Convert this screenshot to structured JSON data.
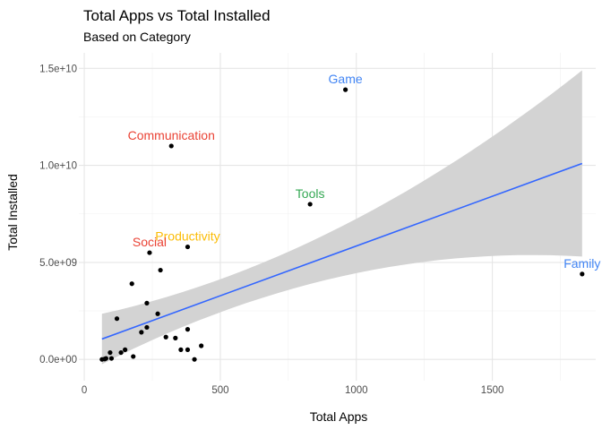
{
  "chart_data": {
    "type": "scatter",
    "title": "Total Apps vs Total Installed",
    "subtitle": "Based on Category",
    "xlabel": "Total Apps",
    "ylabel": "Total Installed",
    "xlim": [
      -20,
      1880
    ],
    "ylim": [
      -1100000000.0,
      15800000000.0
    ],
    "x_ticks": [
      0,
      500,
      1000,
      1500
    ],
    "x_tick_labels": [
      "0",
      "500",
      "1000",
      "1500"
    ],
    "y_ticks": [
      0,
      5000000000.0,
      10000000000.0,
      15000000000.0
    ],
    "y_tick_labels": [
      "0.0e+00",
      "5.0e+09",
      "1.0e+10",
      "1.5e+10"
    ],
    "grid": true,
    "points": [
      {
        "x": 960,
        "y": 13900000000.0
      },
      {
        "x": 320,
        "y": 11000000000.0
      },
      {
        "x": 830,
        "y": 8000000000.0
      },
      {
        "x": 240,
        "y": 5500000000.0
      },
      {
        "x": 380,
        "y": 5800000000.0
      },
      {
        "x": 1830,
        "y": 4400000000.0
      },
      {
        "x": 280,
        "y": 4600000000.0
      },
      {
        "x": 175,
        "y": 3900000000.0
      },
      {
        "x": 230,
        "y": 2900000000.0
      },
      {
        "x": 270,
        "y": 2350000000.0
      },
      {
        "x": 120,
        "y": 2100000000.0
      },
      {
        "x": 230,
        "y": 1650000000.0
      },
      {
        "x": 210,
        "y": 1400000000.0
      },
      {
        "x": 380,
        "y": 1550000000.0
      },
      {
        "x": 300,
        "y": 1150000000.0
      },
      {
        "x": 335,
        "y": 1100000000.0
      },
      {
        "x": 430,
        "y": 700000000.0
      },
      {
        "x": 355,
        "y": 500000000.0
      },
      {
        "x": 380,
        "y": 500000000.0
      },
      {
        "x": 150,
        "y": 500000000.0
      },
      {
        "x": 135,
        "y": 350000000.0
      },
      {
        "x": 95,
        "y": 350000000.0
      },
      {
        "x": 180,
        "y": 150000000.0
      },
      {
        "x": 405,
        "y": 0.0
      },
      {
        "x": 100,
        "y": 50000000.0
      },
      {
        "x": 80,
        "y": 50000000.0
      },
      {
        "x": 65,
        "y": 0.0
      },
      {
        "x": 75,
        "y": 20000000.0
      }
    ],
    "labels": [
      {
        "text": "Game",
        "x": 960,
        "y": 13900000000.0,
        "color": "#4285F4"
      },
      {
        "text": "Communication",
        "x": 320,
        "y": 11000000000.0,
        "color": "#EA4335"
      },
      {
        "text": "Tools",
        "x": 830,
        "y": 8000000000.0,
        "color": "#34A853"
      },
      {
        "text": "Productivity",
        "x": 380,
        "y": 5800000000.0,
        "color": "#FBBC05"
      },
      {
        "text": "Social",
        "x": 240,
        "y": 5500000000.0,
        "color": "#EA4335"
      },
      {
        "text": "Family",
        "x": 1830,
        "y": 4400000000.0,
        "color": "#4285F4"
      }
    ],
    "trend": {
      "method": "lm",
      "color": "#3366FF",
      "band_color": "#D3D3D3",
      "x_start": 65,
      "x_end": 1830,
      "line": [
        1050000000.0,
        10100000000.0
      ],
      "upper": [
        2350000000.0,
        14900000000.0
      ],
      "lower": [
        -250000000.0,
        5300000000.0
      ]
    }
  }
}
